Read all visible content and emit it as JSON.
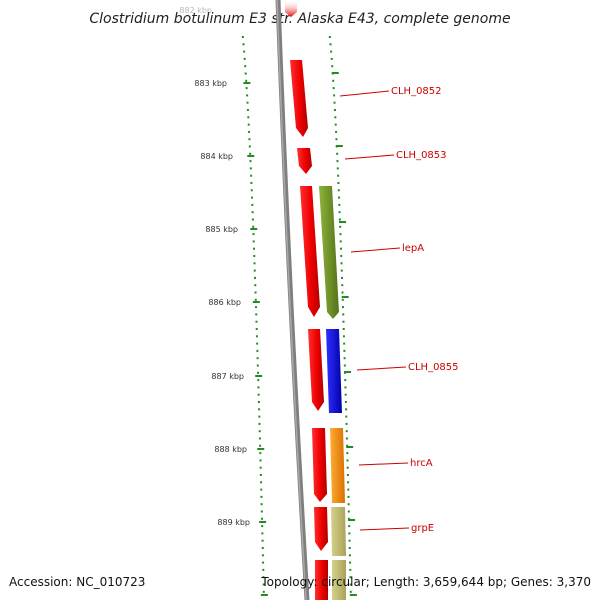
{
  "title": "Clostridium botulinum E3 str. Alaska E43, complete genome",
  "footer": {
    "accession": "Accession: NC_010723",
    "topology": "Topology: circular; Length: 3,659,644 bp; Genes: 3,370"
  },
  "ticks": [
    {
      "label": "882 kbp",
      "faded": true
    },
    {
      "label": "883 kbp"
    },
    {
      "label": "884 kbp"
    },
    {
      "label": "885 kbp"
    },
    {
      "label": "886 kbp"
    },
    {
      "label": "887 kbp"
    },
    {
      "label": "888 kbp"
    },
    {
      "label": "889 kbp"
    }
  ],
  "genes": [
    {
      "label": "CLH_0852"
    },
    {
      "label": "CLH_0853"
    },
    {
      "label": "lepA"
    },
    {
      "label": "CLH_0855"
    },
    {
      "label": "hrcA"
    },
    {
      "label": "grpE"
    }
  ],
  "colors": {
    "backbone": "#7f7f7f",
    "forward_strand": "#ee0000",
    "tick_mark": "#228b22",
    "label_text": "#cc0000",
    "lepA": "#6b8e23",
    "CLH_0855": "#0000ee",
    "hrcA": "#ff8c00",
    "grpE": "#bdb76b"
  }
}
